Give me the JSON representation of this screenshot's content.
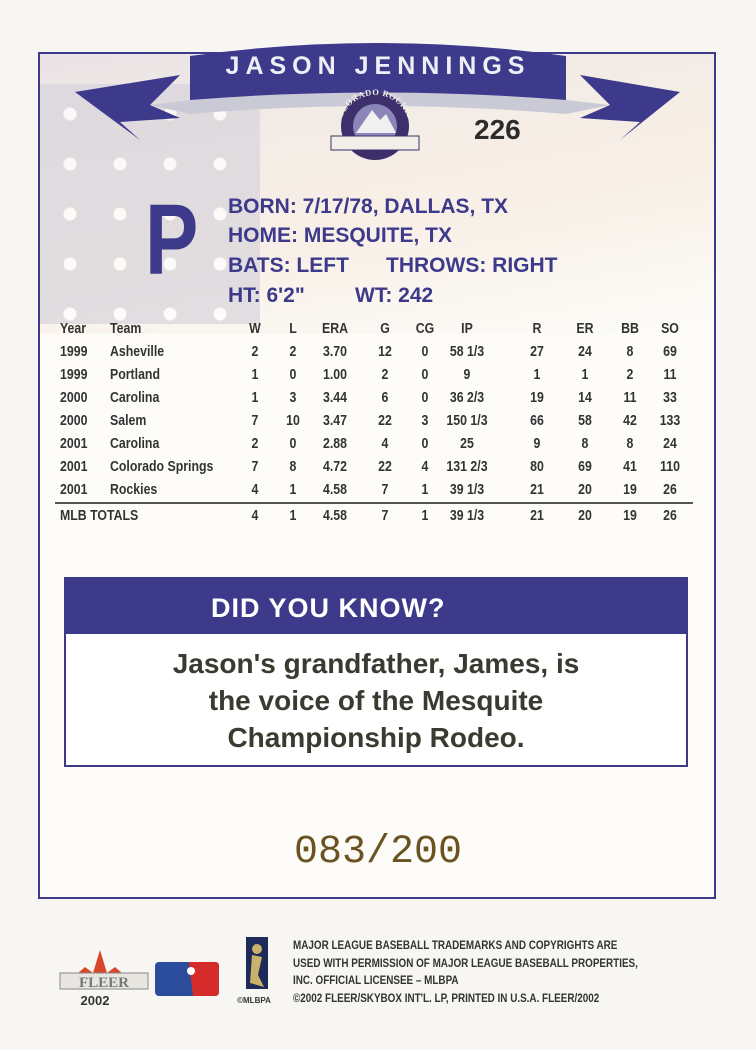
{
  "player": {
    "name": "JASON JENNINGS",
    "card_number": "226",
    "position": "P",
    "team_logo_text": "COLORADO ROCKIES"
  },
  "bio": {
    "born": "BORN: 7/17/78, DALLAS, TX",
    "home": "HOME: MESQUITE, TX",
    "bats": "BATS: LEFT",
    "throws": "THROWS: RIGHT",
    "height": "HT: 6'2\"",
    "weight": "WT: 242"
  },
  "stats": {
    "headers": [
      "Year",
      "Team",
      "W",
      "L",
      "ERA",
      "G",
      "CG",
      "IP",
      "R",
      "ER",
      "BB",
      "SO"
    ],
    "rows": [
      [
        "1999",
        "Asheville",
        "2",
        "2",
        "3.70",
        "12",
        "0",
        "58 1/3",
        "27",
        "24",
        "8",
        "69"
      ],
      [
        "1999",
        "Portland",
        "1",
        "0",
        "1.00",
        "2",
        "0",
        "9",
        "1",
        "1",
        "2",
        "11"
      ],
      [
        "2000",
        "Carolina",
        "1",
        "3",
        "3.44",
        "6",
        "0",
        "36 2/3",
        "19",
        "14",
        "11",
        "33"
      ],
      [
        "2000",
        "Salem",
        "7",
        "10",
        "3.47",
        "22",
        "3",
        "150 1/3",
        "66",
        "58",
        "42",
        "133"
      ],
      [
        "2001",
        "Carolina",
        "2",
        "0",
        "2.88",
        "4",
        "0",
        "25",
        "9",
        "8",
        "8",
        "24"
      ],
      [
        "2001",
        "Colorado Springs",
        "7",
        "8",
        "4.72",
        "22",
        "4",
        "131 2/3",
        "80",
        "69",
        "41",
        "110"
      ],
      [
        "2001",
        "Rockies",
        "4",
        "1",
        "4.58",
        "7",
        "1",
        "39 1/3",
        "21",
        "20",
        "19",
        "26"
      ]
    ],
    "totals": [
      "MLB TOTALS",
      "4",
      "1",
      "4.58",
      "7",
      "1",
      "39 1/3",
      "21",
      "20",
      "19",
      "26"
    ]
  },
  "did_you_know": {
    "title": "DID YOU KNOW?",
    "lines": [
      "Jason's grandfather, James, is",
      "the voice of the Mesquite",
      "Championship Rodeo."
    ]
  },
  "serial": "083/200",
  "footer": {
    "brand": "FLEER",
    "year": "2002",
    "mlbpa": "©MLBPA",
    "legal": [
      "MAJOR LEAGUE BASEBALL TRADEMARKS AND COPYRIGHTS ARE",
      "USED WITH PERMISSION OF MAJOR LEAGUE BASEBALL PROPERTIES,",
      "INC. OFFICIAL LICENSEE – MLBPA",
      "©2002 FLEER/SKYBOX INT'L. LP, PRINTED IN U.S.A. FLEER/2002"
    ]
  },
  "colors": {
    "navy": "#3d3a8c",
    "serial": "#6b5320"
  }
}
